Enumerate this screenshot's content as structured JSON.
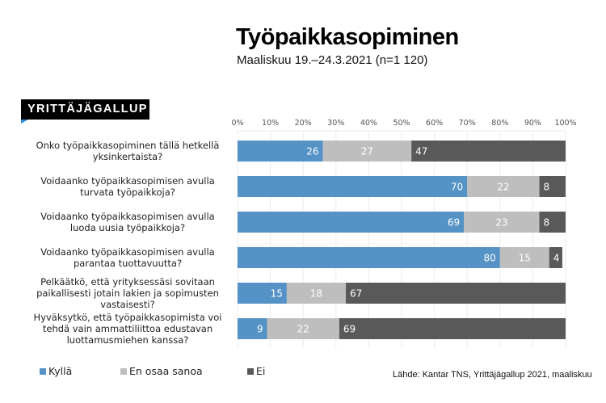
{
  "header": {
    "title": "Työpaikkasopiminen",
    "subtitle": "Maaliskuu 19.–24.3.2021 (n=1 120)",
    "logo_text": "YRITTÄJÄGALLUP"
  },
  "footer": {
    "source": "Lähde: Kantar TNS, Yrittäjägallup 2021, maaliskuu"
  },
  "colors": {
    "kylla": "#5592C6",
    "en_osaa": "#BEBEBE",
    "ei": "#595959",
    "grid": "#EBEBEB"
  },
  "chart_data": {
    "type": "bar",
    "orientation": "horizontal",
    "stacked": true,
    "title": "Työpaikkasopiminen",
    "subtitle": "Maaliskuu 19.–24.3.2021 (n=1 120)",
    "xlim": [
      0,
      100
    ],
    "x_ticks": [
      "0%",
      "10%",
      "20%",
      "30%",
      "40%",
      "50%",
      "60%",
      "70%",
      "80%",
      "90%",
      "100%"
    ],
    "grid": true,
    "legend_position": "bottom",
    "categories": [
      [
        "Onko työpaikkasopiminen tällä hetkellä",
        "yksinkertaista?"
      ],
      [
        "Voidaanko työpaikkasopimisen avulla",
        "turvata työpaikkoja?"
      ],
      [
        "Voidaanko työpaikkasopimisen avulla",
        "luoda uusia työpaikkoja?"
      ],
      [
        "Voidaanko työpaikkasopimisen avulla",
        "parantaa tuottavuutta?"
      ],
      [
        "Pelkäätkö, että yrityksessäsi sovitaan",
        "paikallisesti jotain lakien ja sopimusten",
        "vastaisesti?"
      ],
      [
        "Hyväksytkö, että työpaikkasopimista voi",
        "tehdä vain ammattiliittoa edustavan",
        "luottamusmiehen kanssa?"
      ]
    ],
    "series": [
      {
        "name": "Kyllä",
        "values": [
          26,
          70,
          69,
          80,
          15,
          9
        ]
      },
      {
        "name": "En osaa sanoa",
        "values": [
          27,
          22,
          23,
          15,
          18,
          22
        ]
      },
      {
        "name": "Ei",
        "values": [
          47,
          8,
          8,
          4,
          67,
          69
        ]
      }
    ]
  }
}
